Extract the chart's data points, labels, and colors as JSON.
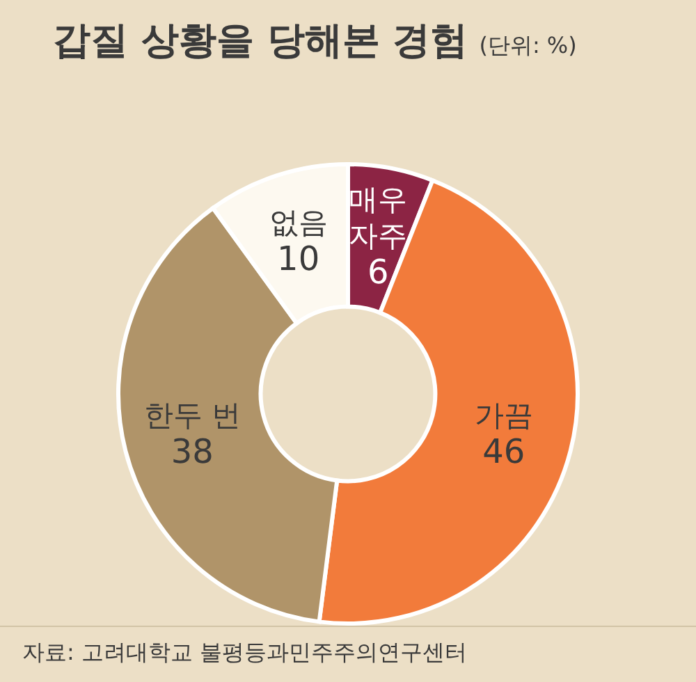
{
  "chart_data": {
    "type": "donut",
    "title": "갑질 상황을 당해본 경험",
    "subtitle": "(단위: %)",
    "categories": [
      "매우 자주",
      "가끔",
      "한두 번",
      "없음"
    ],
    "values": [
      6,
      46,
      38,
      10
    ],
    "colors": [
      "#8c2444",
      "#f27b3b",
      "#b09469",
      "#fdf9f0"
    ],
    "data_labels": true,
    "annotations": [
      "자료: 고려대학교 불평등과민주주의연구센터"
    ]
  }
}
